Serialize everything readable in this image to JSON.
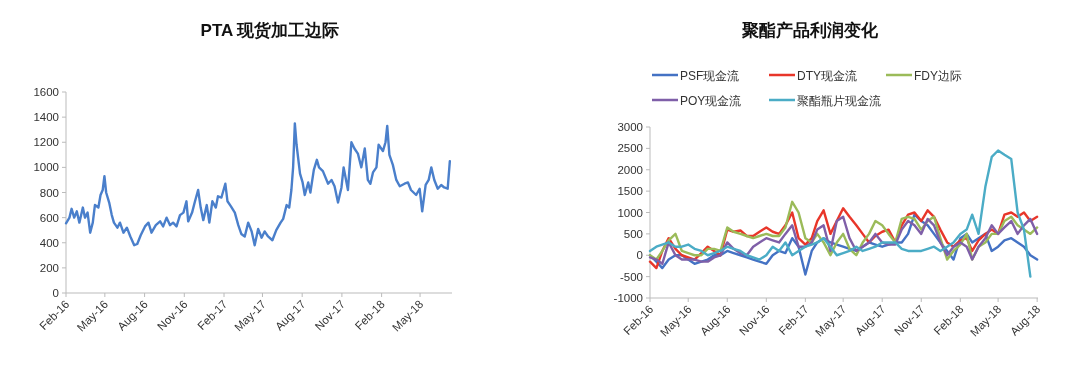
{
  "chart_data": [
    {
      "type": "line",
      "title": "PTA 现货加工边际",
      "xlim": [
        "2016-02-01",
        "2018-07-14"
      ],
      "ylim": [
        0,
        1600
      ],
      "xticks": [
        {
          "value": "2016-02-01",
          "label": "Feb-16"
        },
        {
          "value": "2016-05-01",
          "label": "May-16"
        },
        {
          "value": "2016-08-01",
          "label": "Aug-16"
        },
        {
          "value": "2016-11-01",
          "label": "Nov-16"
        },
        {
          "value": "2017-02-01",
          "label": "Feb-17"
        },
        {
          "value": "2017-05-01",
          "label": "May-17"
        },
        {
          "value": "2017-08-01",
          "label": "Aug-17"
        },
        {
          "value": "2017-11-01",
          "label": "Nov-17"
        },
        {
          "value": "2018-02-01",
          "label": "Feb-18"
        },
        {
          "value": "2018-05-01",
          "label": "May-18"
        }
      ],
      "yticks": [
        0,
        200,
        400,
        600,
        800,
        1000,
        1200,
        1400,
        1600
      ],
      "x": [
        "2016-02-01",
        "2016-02-09",
        "2016-02-14",
        "2016-02-20",
        "2016-02-26",
        "2016-03-03",
        "2016-03-11",
        "2016-03-16",
        "2016-03-22",
        "2016-03-28",
        "2016-04-03",
        "2016-04-08",
        "2016-04-16",
        "2016-04-21",
        "2016-04-26",
        "2016-04-30",
        "2016-05-04",
        "2016-05-11",
        "2016-05-17",
        "2016-05-22",
        "2016-05-30",
        "2016-06-05",
        "2016-06-13",
        "2016-06-21",
        "2016-06-29",
        "2016-07-08",
        "2016-07-15",
        "2016-07-23",
        "2016-08-02",
        "2016-08-10",
        "2016-08-17",
        "2016-08-27",
        "2016-09-06",
        "2016-09-13",
        "2016-09-21",
        "2016-09-29",
        "2016-10-06",
        "2016-10-14",
        "2016-10-22",
        "2016-10-30",
        "2016-11-06",
        "2016-11-10",
        "2016-11-19",
        "2016-11-25",
        "2016-12-03",
        "2016-12-09",
        "2016-12-15",
        "2016-12-23",
        "2016-12-29",
        "2017-01-05",
        "2017-01-13",
        "2017-01-18",
        "2017-01-26",
        "2017-02-04",
        "2017-02-09",
        "2017-02-17",
        "2017-02-26",
        "2017-03-06",
        "2017-03-13",
        "2017-03-21",
        "2017-03-29",
        "2017-04-06",
        "2017-04-13",
        "2017-04-21",
        "2017-04-29",
        "2017-05-06",
        "2017-05-14",
        "2017-05-24",
        "2017-06-02",
        "2017-06-12",
        "2017-06-18",
        "2017-06-26",
        "2017-07-02",
        "2017-07-07",
        "2017-07-11",
        "2017-07-15",
        "2017-07-19",
        "2017-07-27",
        "2017-08-02",
        "2017-08-07",
        "2017-08-15",
        "2017-08-20",
        "2017-08-28",
        "2017-09-04",
        "2017-09-09",
        "2017-09-18",
        "2017-09-30",
        "2017-10-08",
        "2017-10-15",
        "2017-10-23",
        "2017-10-31",
        "2017-11-05",
        "2017-11-15",
        "2017-11-23",
        "2017-11-30",
        "2017-12-08",
        "2017-12-16",
        "2017-12-24",
        "2017-12-31",
        "2018-01-06",
        "2018-01-12",
        "2018-01-20",
        "2018-01-25",
        "2018-02-04",
        "2018-02-10",
        "2018-02-14",
        "2018-02-19",
        "2018-02-27",
        "2018-03-07",
        "2018-03-15",
        "2018-03-26",
        "2018-04-03",
        "2018-04-10",
        "2018-04-22",
        "2018-04-30",
        "2018-05-06",
        "2018-05-14",
        "2018-05-21",
        "2018-05-27",
        "2018-06-03",
        "2018-06-11",
        "2018-06-19",
        "2018-06-26",
        "2018-07-04",
        "2018-07-09"
      ],
      "series": [
        {
          "color": "#4a7fcb",
          "values": [
            555,
            600,
            670,
            600,
            650,
            560,
            680,
            600,
            640,
            480,
            560,
            700,
            680,
            780,
            820,
            930,
            800,
            720,
            620,
            560,
            520,
            560,
            480,
            520,
            450,
            380,
            390,
            460,
            530,
            560,
            480,
            540,
            570,
            530,
            600,
            540,
            560,
            530,
            620,
            640,
            730,
            570,
            640,
            720,
            820,
            680,
            580,
            700,
            560,
            730,
            680,
            770,
            760,
            870,
            730,
            690,
            640,
            540,
            470,
            450,
            560,
            490,
            380,
            510,
            440,
            490,
            450,
            420,
            500,
            560,
            590,
            700,
            680,
            820,
            1000,
            1350,
            1180,
            950,
            880,
            780,
            880,
            800,
            980,
            1060,
            1000,
            970,
            870,
            900,
            850,
            720,
            840,
            1000,
            820,
            1200,
            1150,
            1110,
            1000,
            1150,
            900,
            870,
            960,
            1000,
            1180,
            1130,
            1200,
            1330,
            1100,
            1020,
            900,
            850,
            870,
            880,
            820,
            780,
            830,
            650,
            860,
            900,
            1000,
            900,
            830,
            860,
            840,
            830,
            1050
          ]
        }
      ]
    },
    {
      "type": "line",
      "title": "聚酯产品利润变化",
      "legend": "top",
      "xlim": [
        "2016-02-01",
        "2018-08-03"
      ],
      "ylim": [
        -1000,
        3000
      ],
      "xticks": [
        {
          "value": "2016-02-01",
          "label": "Feb-16"
        },
        {
          "value": "2016-05-01",
          "label": "May-16"
        },
        {
          "value": "2016-08-01",
          "label": "Aug-16"
        },
        {
          "value": "2016-11-01",
          "label": "Nov-16"
        },
        {
          "value": "2017-02-01",
          "label": "Feb-17"
        },
        {
          "value": "2017-05-01",
          "label": "May-17"
        },
        {
          "value": "2017-08-01",
          "label": "Aug-17"
        },
        {
          "value": "2017-11-01",
          "label": "Nov-17"
        },
        {
          "value": "2018-02-01",
          "label": "Feb-18"
        },
        {
          "value": "2018-05-01",
          "label": "May-18"
        },
        {
          "value": "2018-08-01",
          "label": "Aug-18"
        }
      ],
      "yticks": [
        -1000,
        -500,
        0,
        500,
        1000,
        1500,
        2000,
        2500,
        3000
      ],
      "x": [
        "2016-02-01",
        "2016-02-16",
        "2016-03-01",
        "2016-03-16",
        "2016-04-01",
        "2016-04-16",
        "2016-05-01",
        "2016-05-16",
        "2016-06-01",
        "2016-06-16",
        "2016-07-01",
        "2016-07-16",
        "2016-08-01",
        "2016-08-16",
        "2016-09-01",
        "2016-09-16",
        "2016-10-01",
        "2016-10-16",
        "2016-11-01",
        "2016-11-16",
        "2016-12-01",
        "2016-12-16",
        "2017-01-01",
        "2017-01-16",
        "2017-02-01",
        "2017-02-16",
        "2017-03-01",
        "2017-03-16",
        "2017-04-01",
        "2017-04-16",
        "2017-05-01",
        "2017-05-16",
        "2017-06-01",
        "2017-06-16",
        "2017-07-01",
        "2017-07-16",
        "2017-08-01",
        "2017-08-16",
        "2017-09-01",
        "2017-09-16",
        "2017-10-01",
        "2017-10-16",
        "2017-11-01",
        "2017-11-16",
        "2017-12-01",
        "2017-12-16",
        "2018-01-01",
        "2018-01-16",
        "2018-02-01",
        "2018-02-16",
        "2018-03-01",
        "2018-03-16",
        "2018-04-01",
        "2018-04-16",
        "2018-05-01",
        "2018-05-16",
        "2018-06-01",
        "2018-06-16",
        "2018-07-01",
        "2018-07-16",
        "2018-08-01"
      ],
      "series": [
        {
          "name": "PSF现金流",
          "color": "#4472c4",
          "values": [
            0,
            -150,
            -300,
            -100,
            0,
            0,
            -100,
            -200,
            -150,
            -100,
            0,
            0,
            100,
            50,
            0,
            -50,
            -100,
            -150,
            -200,
            0,
            100,
            50,
            400,
            200,
            -450,
            100,
            300,
            400,
            300,
            250,
            200,
            150,
            100,
            200,
            300,
            250,
            200,
            250,
            300,
            300,
            500,
            950,
            800,
            700,
            500,
            300,
            100,
            -100,
            400,
            500,
            300,
            400,
            500,
            100,
            200,
            350,
            400,
            300,
            200,
            0,
            -100
          ]
        },
        {
          "name": "DTY现金流",
          "color": "#e8362a",
          "values": [
            -150,
            -300,
            100,
            400,
            150,
            0,
            -50,
            -100,
            50,
            200,
            100,
            0,
            600,
            550,
            580,
            450,
            450,
            550,
            650,
            550,
            500,
            700,
            1000,
            400,
            250,
            400,
            800,
            1050,
            500,
            800,
            1100,
            900,
            700,
            500,
            300,
            450,
            550,
            600,
            300,
            700,
            950,
            1000,
            800,
            1050,
            900,
            600,
            300,
            200,
            350,
            400,
            100,
            350,
            500,
            600,
            500,
            950,
            1000,
            900,
            1000,
            800,
            900
          ]
        },
        {
          "name": "FDY边际",
          "color": "#9bbb59",
          "values": [
            0,
            -100,
            100,
            350,
            500,
            100,
            50,
            0,
            0,
            150,
            150,
            100,
            650,
            550,
            500,
            450,
            400,
            450,
            500,
            450,
            450,
            650,
            1250,
            1000,
            400,
            300,
            500,
            300,
            0,
            300,
            500,
            150,
            0,
            300,
            500,
            800,
            700,
            500,
            300,
            850,
            900,
            850,
            600,
            800,
            900,
            400,
            -100,
            100,
            250,
            500,
            -100,
            200,
            300,
            500,
            500,
            800,
            900,
            700,
            600,
            500,
            650
          ]
        },
        {
          "name": "POY现金流",
          "color": "#7f5fa8",
          "values": [
            -50,
            -100,
            -200,
            300,
            0,
            -100,
            -100,
            -100,
            -150,
            -150,
            -50,
            0,
            300,
            150,
            50,
            0,
            200,
            300,
            400,
            350,
            300,
            500,
            700,
            200,
            200,
            300,
            600,
            700,
            100,
            800,
            900,
            400,
            100,
            200,
            300,
            500,
            300,
            250,
            250,
            600,
            800,
            700,
            500,
            850,
            700,
            300,
            0,
            200,
            300,
            200,
            -100,
            200,
            400,
            700,
            500,
            650,
            800,
            500,
            700,
            850,
            500
          ]
        },
        {
          "name": "聚酯瓶片现金流",
          "color": "#4bacc6",
          "values": [
            100,
            200,
            250,
            300,
            200,
            200,
            250,
            150,
            100,
            0,
            50,
            100,
            200,
            150,
            100,
            0,
            -50,
            -100,
            0,
            200,
            100,
            300,
            0,
            100,
            200,
            250,
            300,
            400,
            200,
            0,
            50,
            100,
            200,
            100,
            150,
            200,
            300,
            300,
            300,
            150,
            100,
            100,
            100,
            150,
            200,
            100,
            200,
            300,
            500,
            600,
            950,
            500,
            1600,
            2300,
            2450,
            2350,
            2250,
            1000,
            600,
            -500,
            null
          ]
        }
      ]
    }
  ]
}
